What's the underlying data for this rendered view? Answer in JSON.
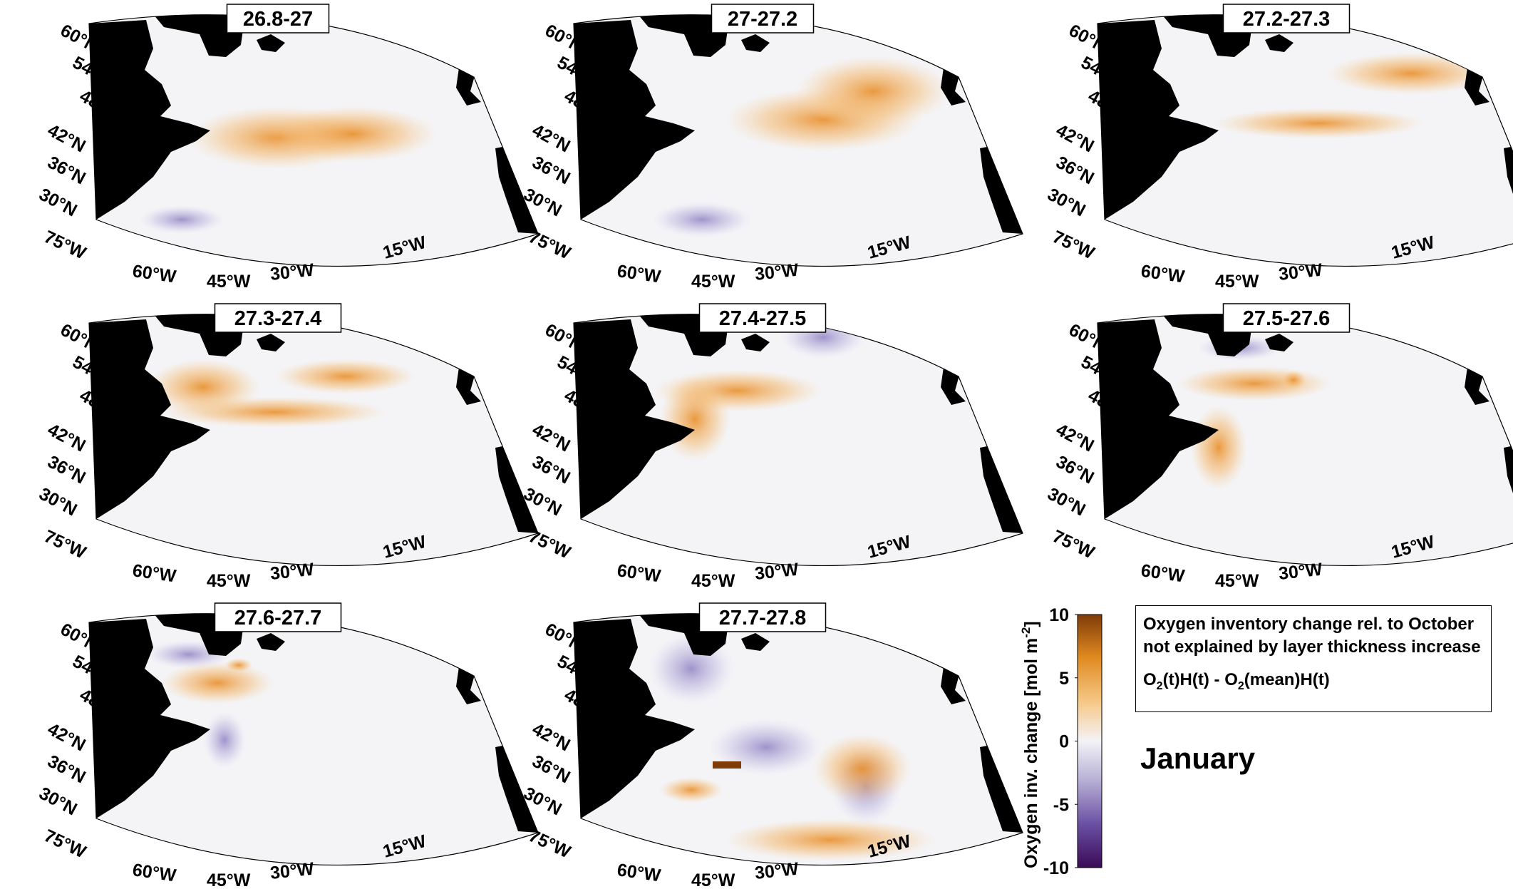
{
  "panels": [
    {
      "title": "26.8-27"
    },
    {
      "title": "27-27.2"
    },
    {
      "title": "27.2-27.3"
    },
    {
      "title": "27.3-27.4"
    },
    {
      "title": "27.4-27.5"
    },
    {
      "title": "27.5-27.6"
    },
    {
      "title": "27.6-27.7"
    },
    {
      "title": "27.7-27.8"
    }
  ],
  "lat_ticks": [
    "60°N",
    "54°N",
    "48°N",
    "42°N",
    "36°N",
    "30°N"
  ],
  "lon_ticks": [
    "75°W",
    "60°W",
    "45°W",
    "30°W",
    "15°W"
  ],
  "colorbar": {
    "label": "Oxygen inv. change [mol m",
    "label_sup": "-2",
    "label_end": "]",
    "ticks": [
      "10",
      "5",
      "0",
      "-5",
      "-10"
    ],
    "range": [
      -10,
      10
    ],
    "colors": [
      "#3a0a56",
      "#6a4fa3",
      "#b9b2d6",
      "#f3f3f7",
      "#f6c98a",
      "#e08a20",
      "#7f3b08"
    ]
  },
  "legend": {
    "line1": "Oxygen inventory change rel. to October",
    "line2": "not explained by layer thickness increase",
    "formula_a": "O",
    "formula_a_sub": "2",
    "formula_b": "(t)H(t) - O",
    "formula_b_sub": "2",
    "formula_c": "(mean)H(t)"
  },
  "month": "January",
  "colors": {
    "land": "#000000",
    "ocean": "#f4f4f7",
    "positive": "#f2a54a",
    "negative": "#8b7fc0",
    "strong_positive": "#7f3b08"
  }
}
